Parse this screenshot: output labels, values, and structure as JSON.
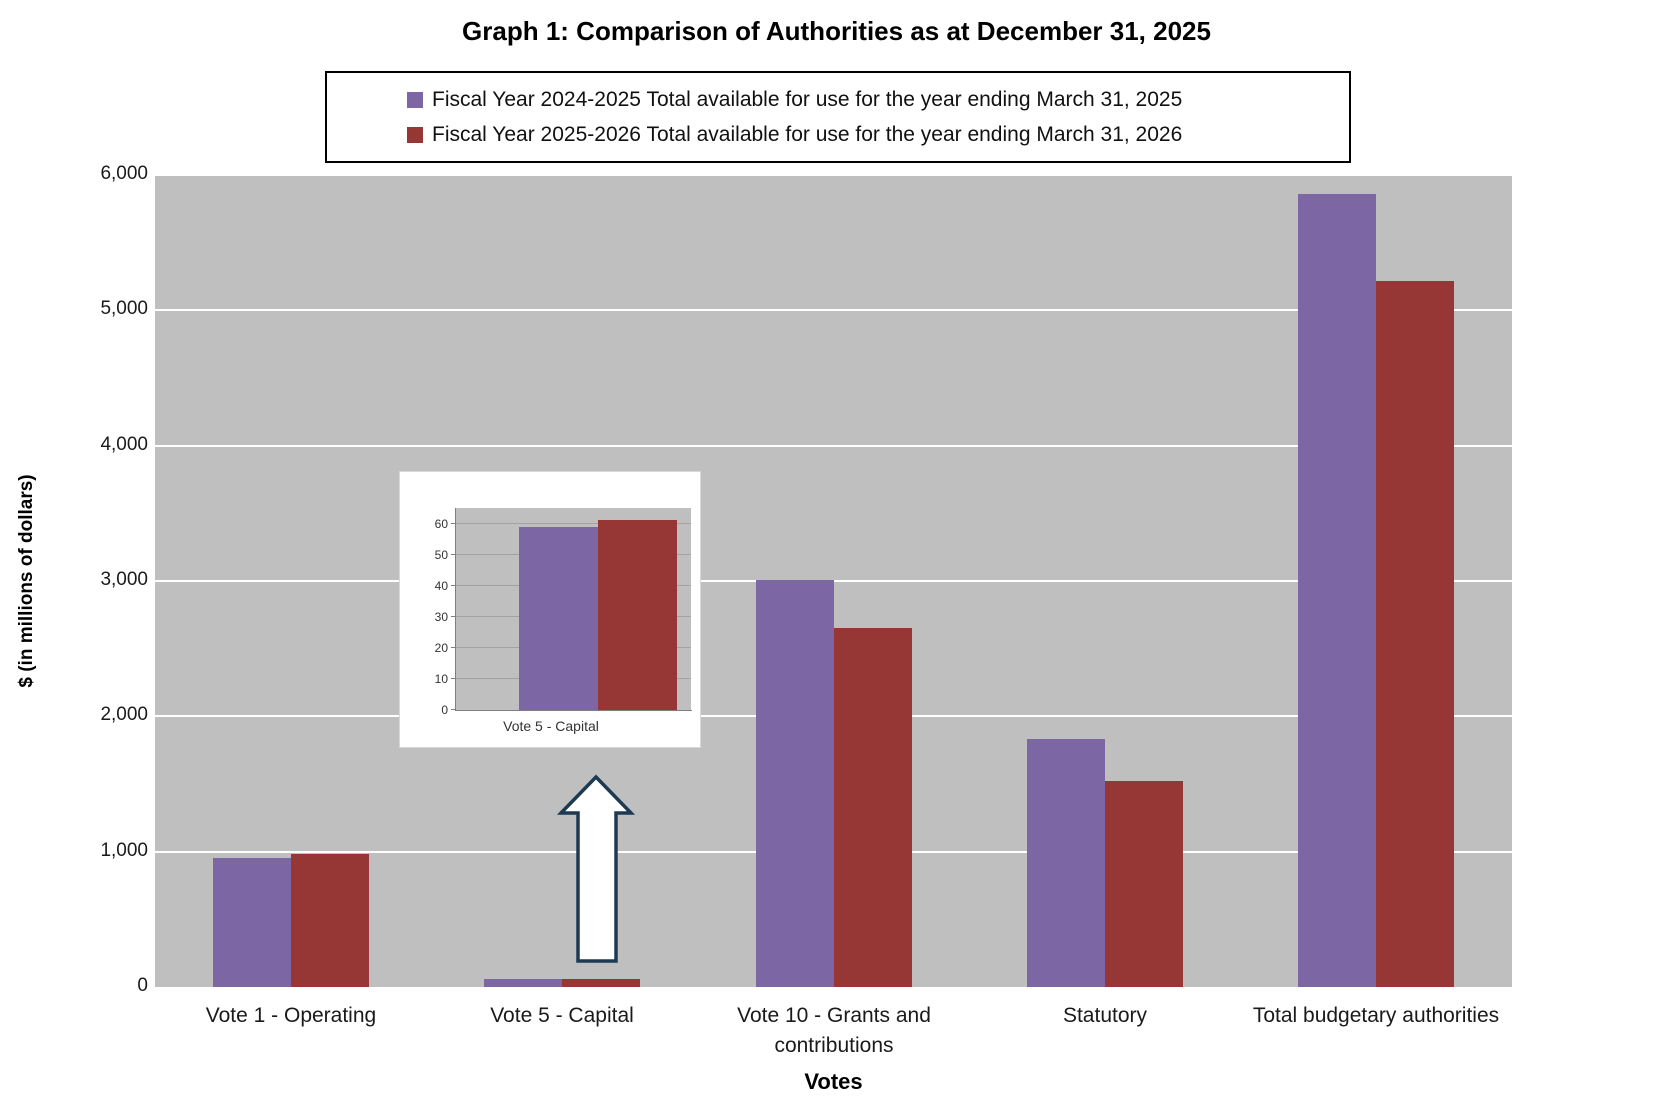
{
  "title": "Graph 1: Comparison of Authorities as at December 31, 2025",
  "legend": {
    "position": "top-center",
    "items": [
      {
        "label": "Fiscal Year 2024-2025 Total available for use for the year ending March 31, 2025",
        "color": "#7C67A4"
      },
      {
        "label": "Fiscal Year 2025-2026 Total available for use for the year ending March 31, 2026",
        "color": "#973735"
      }
    ]
  },
  "chart_data": {
    "type": "bar",
    "title": "Graph 1: Comparison of Authorities as at December 31, 2025",
    "xlabel": "Votes",
    "ylabel": "$ (in millions of dollars)",
    "ylim": [
      0,
      6000
    ],
    "yticks": [
      0,
      1000,
      2000,
      3000,
      4000,
      5000,
      6000
    ],
    "ytick_labels": [
      "0",
      "1,000",
      "2,000",
      "3,000",
      "4,000",
      "5,000",
      "6,000"
    ],
    "grid": "horizontal",
    "plot_background": "#BFBFBF",
    "gridline_color": "#FFFFFF",
    "legend_position": "top",
    "categories": [
      "Vote 1 - Operating",
      "Vote 5 - Capital",
      "Vote 10 - Grants and contributions",
      "Statutory",
      "Total budgetary authorities"
    ],
    "series": [
      {
        "name": "Fiscal Year 2024-2025 Total available for use for the year ending March 31, 2025",
        "color": "#7C67A4",
        "values": [
          955,
          59,
          3010,
          1835,
          5860
        ]
      },
      {
        "name": "Fiscal Year 2025-2026 Total available for use for the year ending March 31, 2026",
        "color": "#973735",
        "values": [
          985,
          61,
          2655,
          1520,
          5220
        ]
      }
    ],
    "inset": {
      "type": "bar",
      "category": "Vote 5 - Capital",
      "series": [
        {
          "name": "Fiscal Year 2024-2025",
          "color": "#7C67A4",
          "value": 59
        },
        {
          "name": "Fiscal Year 2025-2026",
          "color": "#973735",
          "value": 61
        }
      ],
      "ylim": [
        0,
        65
      ],
      "yticks": [
        0,
        10,
        20,
        30,
        40,
        50,
        60
      ],
      "ytick_labels": [
        "0",
        "10",
        "20",
        "30",
        "40",
        "50",
        "60"
      ],
      "gridline_color": "#A3A3A3",
      "plot_background": "#BFBFBF"
    },
    "annotations": {
      "arrow": {
        "shape": "block-arrow-up",
        "fill": "#FFFFFF",
        "stroke": "#1E3A52"
      }
    }
  }
}
